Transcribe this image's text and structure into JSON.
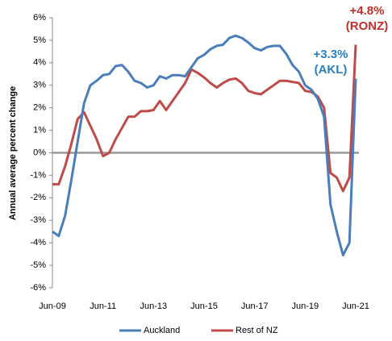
{
  "chart_data": {
    "type": "line",
    "y_label": "Annual average percent change",
    "categories": [
      "Jun-09",
      null,
      null,
      null,
      null,
      null,
      null,
      null,
      "Jun-11",
      null,
      null,
      null,
      null,
      null,
      null,
      null,
      "Jun-13",
      null,
      null,
      null,
      null,
      null,
      null,
      null,
      "Jun-15",
      null,
      null,
      null,
      null,
      null,
      null,
      null,
      "Jun-17",
      null,
      null,
      null,
      null,
      null,
      null,
      null,
      "Jun-19",
      null,
      null,
      null,
      null,
      null,
      null,
      null,
      "Jun-21"
    ],
    "series": [
      {
        "name": "Auckland",
        "color": "#4a7ebb",
        "values": [
          -3.5,
          -3.7,
          -2.8,
          -1.2,
          0.5,
          2.2,
          3.0,
          3.2,
          3.45,
          3.5,
          3.85,
          3.9,
          3.6,
          3.2,
          3.1,
          2.9,
          3.0,
          3.4,
          3.3,
          3.45,
          3.45,
          3.4,
          3.8,
          4.2,
          4.35,
          4.6,
          4.75,
          4.8,
          5.1,
          5.2,
          5.1,
          4.9,
          4.65,
          4.55,
          4.7,
          4.75,
          4.75,
          4.4,
          3.9,
          3.6,
          3.0,
          2.8,
          2.4,
          1.6,
          -2.3,
          -3.5,
          -4.55,
          -4.0,
          3.3
        ]
      },
      {
        "name": "Rest of NZ",
        "color": "#be4b48",
        "values": [
          -1.4,
          -1.4,
          -0.6,
          0.4,
          1.5,
          1.8,
          1.2,
          0.6,
          -0.15,
          0.0,
          0.6,
          1.1,
          1.6,
          1.6,
          1.85,
          1.85,
          1.9,
          2.3,
          1.9,
          2.3,
          2.7,
          3.1,
          3.7,
          3.55,
          3.35,
          3.1,
          2.9,
          3.1,
          3.25,
          3.3,
          3.1,
          2.75,
          2.65,
          2.6,
          2.8,
          3.0,
          3.2,
          3.2,
          3.15,
          3.1,
          2.75,
          2.7,
          2.5,
          2.0,
          -0.9,
          -1.1,
          -1.7,
          -1.1,
          4.8
        ]
      }
    ],
    "annotations": [
      {
        "lines": [
          "+4.8%",
          "(RONZ)"
        ],
        "color": "#c0302a"
      },
      {
        "lines": [
          "+3.3%",
          "(AKL)"
        ],
        "color": "#2a7fc0"
      }
    ],
    "ylim": [
      -6,
      6
    ],
    "yticks": [
      {
        "value": -6,
        "label": "-6%"
      },
      {
        "value": -5,
        "label": "-5%"
      },
      {
        "value": -4,
        "label": "-4%"
      },
      {
        "value": -3,
        "label": "-3%"
      },
      {
        "value": -2,
        "label": "-2%"
      },
      {
        "value": -1,
        "label": "-1%"
      },
      {
        "value": 0,
        "label": "0%"
      },
      {
        "value": 1,
        "label": "1%"
      },
      {
        "value": 2,
        "label": "2%"
      },
      {
        "value": 3,
        "label": "3%"
      },
      {
        "value": 4,
        "label": "4%"
      },
      {
        "value": 5,
        "label": "5%"
      },
      {
        "value": 6,
        "label": "6%"
      }
    ],
    "grid": false,
    "legend": "bottom"
  }
}
